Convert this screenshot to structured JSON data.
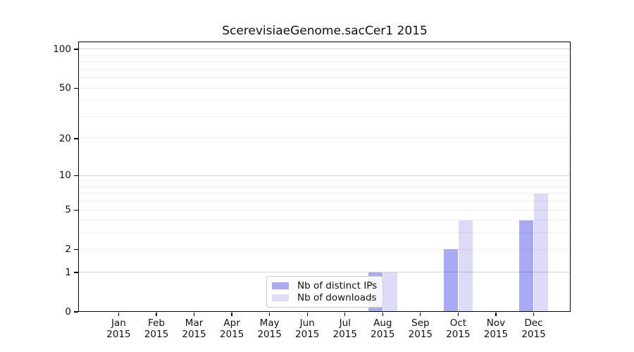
{
  "title": "ScerevisiaeGenome.sacCer1 2015",
  "chart_data": {
    "type": "bar",
    "title": "ScerevisiaeGenome.sacCer1 2015",
    "categories": [
      "Jan",
      "Feb",
      "Mar",
      "Apr",
      "May",
      "Jun",
      "Jul",
      "Aug",
      "Sep",
      "Oct",
      "Nov",
      "Dec"
    ],
    "category_year": "2015",
    "series": [
      {
        "name": "Nb of distinct IPs",
        "color": "#a9a9f5",
        "values": [
          0,
          0,
          0,
          0,
          0,
          0,
          0,
          1,
          0,
          2,
          0,
          4
        ]
      },
      {
        "name": "Nb of downloads",
        "color": "#dcdcf8",
        "values": [
          0,
          0,
          0,
          0,
          0,
          0,
          0,
          1,
          0,
          4,
          0,
          7
        ]
      }
    ],
    "yscale": "log1p",
    "ylim": [
      0,
      113
    ],
    "ytick_values": [
      0,
      1,
      2,
      5,
      10,
      20,
      50,
      100
    ],
    "ytick_labels": [
      "0",
      "1",
      "2",
      "5",
      "10",
      "20",
      "50",
      "100"
    ],
    "major_gridline_values": [
      1,
      10,
      100
    ],
    "minor_gridline_values": [
      2,
      3,
      4,
      5,
      6,
      7,
      8,
      9,
      20,
      30,
      40,
      50,
      60,
      70,
      80,
      90
    ],
    "grid": true,
    "legend_position": "lower center",
    "colors": {
      "spine": "#000000",
      "major_grid": "rgba(0,0,0,0.17)",
      "minor_grid": "rgba(0,0,0,0.055)",
      "background": "#ffffff"
    }
  }
}
